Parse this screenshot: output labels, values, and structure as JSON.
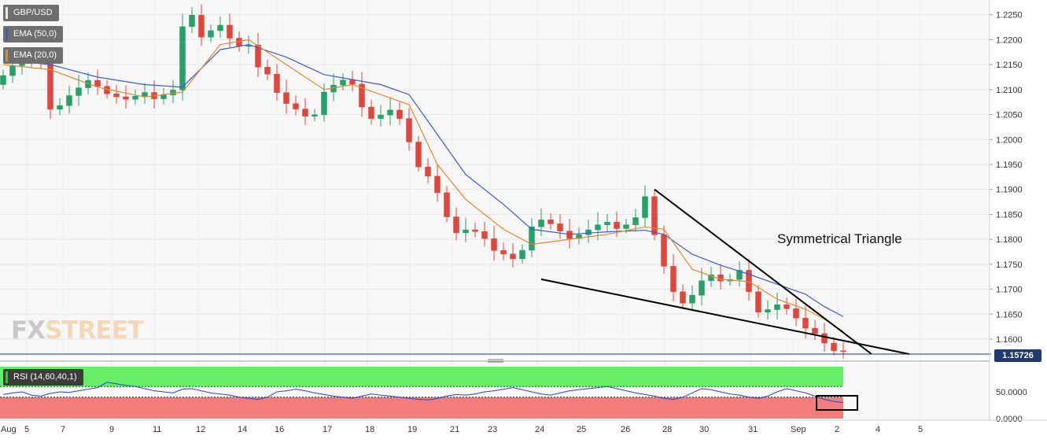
{
  "legend": {
    "symbol": "GBP/USD",
    "ema50": "EMA (50,0)",
    "ema20": "EMA (20,0)",
    "rsi": "RSI (14,60,40,1)"
  },
  "watermark": {
    "fx": "FX",
    "street": "STREET"
  },
  "annotation": "Symmetrical Triangle",
  "last_price": "1.15726",
  "colors": {
    "up_candle": "#27a069",
    "down_candle": "#e0473c",
    "ema50": "#3a5bd9",
    "ema20": "#e08a2e",
    "rsi_line": "#2945c8",
    "rsi_overbought_zone": "#66ee66",
    "rsi_oversold_zone": "#f47c7c"
  },
  "chart_data": [
    {
      "type": "candlestick",
      "symbol": "GBP/USD",
      "y_ticks": [
        "1.2250",
        "1.2200",
        "1.2150",
        "1.2100",
        "1.2050",
        "1.2000",
        "1.1950",
        "1.1900",
        "1.1850",
        "1.1800",
        "1.1750",
        "1.1700",
        "1.1650",
        "1.1600"
      ],
      "ylim": [
        1.157,
        1.227
      ],
      "x_ticks": [
        "Aug",
        "5",
        "7",
        "9",
        "11",
        "12",
        "14",
        "16",
        "17",
        "18",
        "19",
        "21",
        "23",
        "24",
        "25",
        "26",
        "28",
        "30",
        "31",
        "Sep",
        "2",
        "4",
        "5"
      ],
      "price_path": [
        [
          0,
          1.211
        ],
        [
          2,
          1.215
        ],
        [
          4,
          1.216
        ],
        [
          5,
          1.2155
        ],
        [
          6,
          1.205
        ],
        [
          8,
          1.209
        ],
        [
          10,
          1.212
        ],
        [
          12,
          1.209
        ],
        [
          14,
          1.208
        ],
        [
          16,
          1.2095
        ],
        [
          17,
          1.208
        ],
        [
          18,
          1.209
        ],
        [
          19,
          1.21
        ],
        [
          20,
          1.224
        ],
        [
          21,
          1.225
        ],
        [
          22,
          1.22
        ],
        [
          23,
          1.222
        ],
        [
          24,
          1.223
        ],
        [
          25,
          1.22
        ],
        [
          26,
          1.2185
        ],
        [
          27,
          1.219
        ],
        [
          28,
          1.214
        ],
        [
          29,
          1.213
        ],
        [
          30,
          1.209
        ],
        [
          31,
          1.207
        ],
        [
          32,
          1.206
        ],
        [
          33,
          1.2045
        ],
        [
          34,
          1.205
        ],
        [
          35,
          1.21
        ],
        [
          36,
          1.211
        ],
        [
          37,
          1.212
        ],
        [
          38,
          1.211
        ],
        [
          39,
          1.206
        ],
        [
          40,
          1.204
        ],
        [
          41,
          1.205
        ],
        [
          42,
          1.206
        ],
        [
          43,
          1.204
        ],
        [
          44,
          1.199
        ],
        [
          45,
          1.194
        ],
        [
          46,
          1.1925
        ],
        [
          47,
          1.189
        ],
        [
          48,
          1.184
        ],
        [
          49,
          1.181
        ],
        [
          50,
          1.182
        ],
        [
          51,
          1.1815
        ],
        [
          52,
          1.18
        ],
        [
          53,
          1.1775
        ],
        [
          54,
          1.177
        ],
        [
          55,
          1.176
        ],
        [
          56,
          1.178
        ],
        [
          57,
          1.183
        ],
        [
          58,
          1.184
        ],
        [
          59,
          1.183
        ],
        [
          60,
          1.1815
        ],
        [
          61,
          1.18
        ],
        [
          62,
          1.181
        ],
        [
          63,
          1.182
        ],
        [
          64,
          1.183
        ],
        [
          65,
          1.1835
        ],
        [
          66,
          1.182
        ],
        [
          67,
          1.183
        ],
        [
          68,
          1.1845
        ],
        [
          69,
          1.189
        ],
        [
          70,
          1.18
        ],
        [
          71,
          1.174
        ],
        [
          72,
          1.169
        ],
        [
          73,
          1.167
        ],
        [
          74,
          1.169
        ],
        [
          75,
          1.172
        ],
        [
          76,
          1.173
        ],
        [
          77,
          1.1715
        ],
        [
          78,
          1.172
        ],
        [
          79,
          1.174
        ],
        [
          80,
          1.169
        ],
        [
          81,
          1.165
        ],
        [
          82,
          1.166
        ],
        [
          83,
          1.167
        ],
        [
          84,
          1.166
        ],
        [
          85,
          1.164
        ],
        [
          86,
          1.162
        ],
        [
          87,
          1.161
        ],
        [
          88,
          1.159
        ],
        [
          89,
          1.1575
        ]
      ],
      "ema50_path": [
        [
          0,
          1.216
        ],
        [
          5,
          1.215
        ],
        [
          10,
          1.2125
        ],
        [
          15,
          1.211
        ],
        [
          19,
          1.2105
        ],
        [
          23,
          1.218
        ],
        [
          26,
          1.219
        ],
        [
          30,
          1.2165
        ],
        [
          34,
          1.213
        ],
        [
          37,
          1.212
        ],
        [
          40,
          1.211
        ],
        [
          43,
          1.209
        ],
        [
          46,
          1.201
        ],
        [
          49,
          1.193
        ],
        [
          53,
          1.187
        ],
        [
          56,
          1.182
        ],
        [
          60,
          1.181
        ],
        [
          64,
          1.1815
        ],
        [
          68,
          1.1818
        ],
        [
          70,
          1.181
        ],
        [
          73,
          1.177
        ],
        [
          76,
          1.1748
        ],
        [
          79,
          1.173
        ],
        [
          82,
          1.171
        ],
        [
          85,
          1.169
        ],
        [
          87,
          1.1665
        ],
        [
          89,
          1.1645
        ]
      ],
      "ema20_path": [
        [
          0,
          1.215
        ],
        [
          5,
          1.214
        ],
        [
          10,
          1.2105
        ],
        [
          15,
          1.2085
        ],
        [
          19,
          1.2095
        ],
        [
          23,
          1.219
        ],
        [
          26,
          1.22
        ],
        [
          30,
          1.215
        ],
        [
          34,
          1.21
        ],
        [
          37,
          1.211
        ],
        [
          40,
          1.209
        ],
        [
          43,
          1.207
        ],
        [
          46,
          1.195
        ],
        [
          49,
          1.188
        ],
        [
          53,
          1.182
        ],
        [
          56,
          1.179
        ],
        [
          60,
          1.18
        ],
        [
          64,
          1.181
        ],
        [
          68,
          1.1825
        ],
        [
          70,
          1.182
        ],
        [
          73,
          1.174
        ],
        [
          76,
          1.172
        ],
        [
          79,
          1.1715
        ],
        [
          82,
          1.168
        ],
        [
          85,
          1.166
        ],
        [
          87,
          1.164
        ],
        [
          89,
          1.1615
        ]
      ],
      "pattern_lines": [
        {
          "name": "Symmetrical Triangle",
          "from": [
            69,
            1.19
          ],
          "to": [
            92,
            1.157
          ]
        },
        {
          "name": "Symmetrical Triangle",
          "from": [
            57,
            1.172
          ],
          "to": [
            96,
            1.157
          ]
        }
      ],
      "last_price": 1.15726
    },
    {
      "type": "line",
      "name": "RSI (14,60,40,1)",
      "y_ticks": [
        "50.0000",
        "0.0000"
      ],
      "ylim": [
        0,
        100
      ],
      "upper_band": 60,
      "lower_band": 40,
      "values": [
        45,
        48,
        50,
        44,
        42,
        47,
        50,
        49,
        52,
        55,
        58,
        68,
        65,
        62,
        60,
        56,
        52,
        50,
        48,
        55,
        56,
        52,
        48,
        46,
        44,
        40,
        38,
        36,
        40,
        50,
        52,
        55,
        52,
        48,
        45,
        42,
        40,
        38,
        42,
        46,
        44,
        42,
        40,
        38,
        36,
        35,
        38,
        42,
        45,
        44,
        46,
        50,
        52,
        55,
        58,
        54,
        50,
        46,
        44,
        48,
        52,
        54,
        56,
        58,
        60,
        56,
        52,
        48,
        45,
        42,
        38,
        36,
        40,
        48,
        56,
        54,
        50,
        46,
        44,
        40,
        38,
        42,
        50,
        56,
        52,
        48,
        42,
        36,
        32,
        30
      ]
    }
  ]
}
